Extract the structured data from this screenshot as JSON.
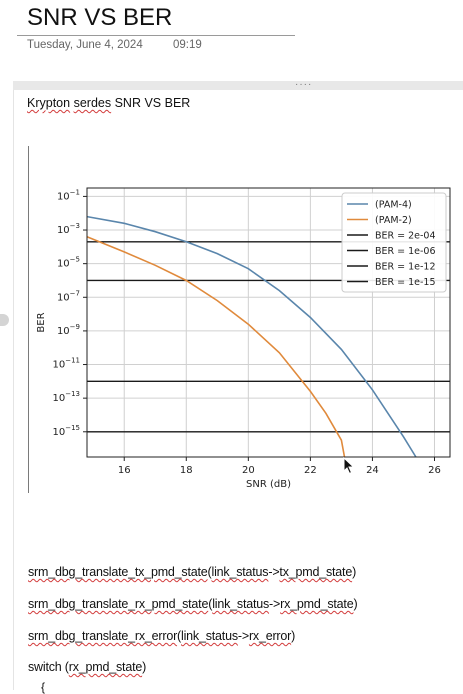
{
  "page": {
    "title": "SNR VS BER",
    "date": "Tuesday, June 4, 2024",
    "time": "09:19",
    "handle": "····"
  },
  "note": {
    "heading_word1": "Krypton",
    "heading_word2": "serdes",
    "heading_rest": "SNR VS BER"
  },
  "code_lines": [
    {
      "parts": [
        {
          "text": "srm_dbg_translate_tx_pmd_state",
          "squig": true
        },
        {
          "text": "(",
          "squig": false
        },
        {
          "text": "link_status",
          "squig": true
        },
        {
          "text": "->",
          "squig": false
        },
        {
          "text": "tx_pmd_state",
          "squig": true
        },
        {
          "text": ")",
          "squig": false
        }
      ]
    },
    {
      "parts": [
        {
          "text": "srm_dbg_translate_rx_pmd_state",
          "squig": true
        },
        {
          "text": "(",
          "squig": false
        },
        {
          "text": "link_status",
          "squig": true
        },
        {
          "text": "->",
          "squig": false
        },
        {
          "text": "rx_pmd_state",
          "squig": true
        },
        {
          "text": ")",
          "squig": false
        }
      ]
    },
    {
      "parts": [
        {
          "text": "srm_dbg_translate_rx_error",
          "squig": true
        },
        {
          "text": "(",
          "squig": false
        },
        {
          "text": "link_status",
          "squig": true
        },
        {
          "text": "->",
          "squig": false
        },
        {
          "text": "rx_error",
          "squig": true
        },
        {
          "text": ")",
          "squig": false
        }
      ]
    },
    {
      "parts": [
        {
          "text": "switch (",
          "squig": false
        },
        {
          "text": "rx_pmd_state",
          "squig": true
        },
        {
          "text": ")",
          "squig": false
        }
      ]
    }
  ],
  "brace": "{",
  "chart_data": {
    "type": "line",
    "title": "",
    "xlabel": "SNR (dB)",
    "ylabel": "BER",
    "xlim": [
      14.8,
      26.5
    ],
    "ylim_exp": [
      -16.5,
      -0.5
    ],
    "y_scale": "log",
    "xticks": [
      16,
      18,
      20,
      22,
      24,
      26
    ],
    "yticks_exp": [
      -1,
      -3,
      -5,
      -7,
      -9,
      -11,
      -13,
      -15
    ],
    "grid": true,
    "legend_position": "top-right",
    "series": [
      {
        "name": "(PAM-4)",
        "color": "#5a86ac",
        "x": [
          14.8,
          16,
          17,
          18,
          19,
          20,
          21,
          22,
          23,
          24,
          25,
          25.4
        ],
        "y_exp": [
          -2.2,
          -2.6,
          -3.1,
          -3.7,
          -4.4,
          -5.3,
          -6.6,
          -8.2,
          -10.1,
          -12.5,
          -15.3,
          -16.5
        ]
      },
      {
        "name": "(PAM-2)",
        "color": "#e08a3c",
        "x": [
          14.8,
          16,
          17,
          18,
          19,
          20,
          21,
          22,
          22.5,
          23,
          23.1
        ],
        "y_exp": [
          -3.4,
          -4.3,
          -5.1,
          -6.0,
          -7.2,
          -8.6,
          -10.3,
          -12.6,
          -13.9,
          -15.5,
          -16.5
        ]
      }
    ],
    "thresholds": [
      {
        "name": "BER = 2e-04",
        "y_exp": -3.7
      },
      {
        "name": "BER = 1e-06",
        "y_exp": -6.0
      },
      {
        "name": "BER = 1e-12",
        "y_exp": -12.0
      },
      {
        "name": "BER = 1e-15",
        "y_exp": -15.0
      }
    ],
    "threshold_color": "#1a1a1a"
  }
}
